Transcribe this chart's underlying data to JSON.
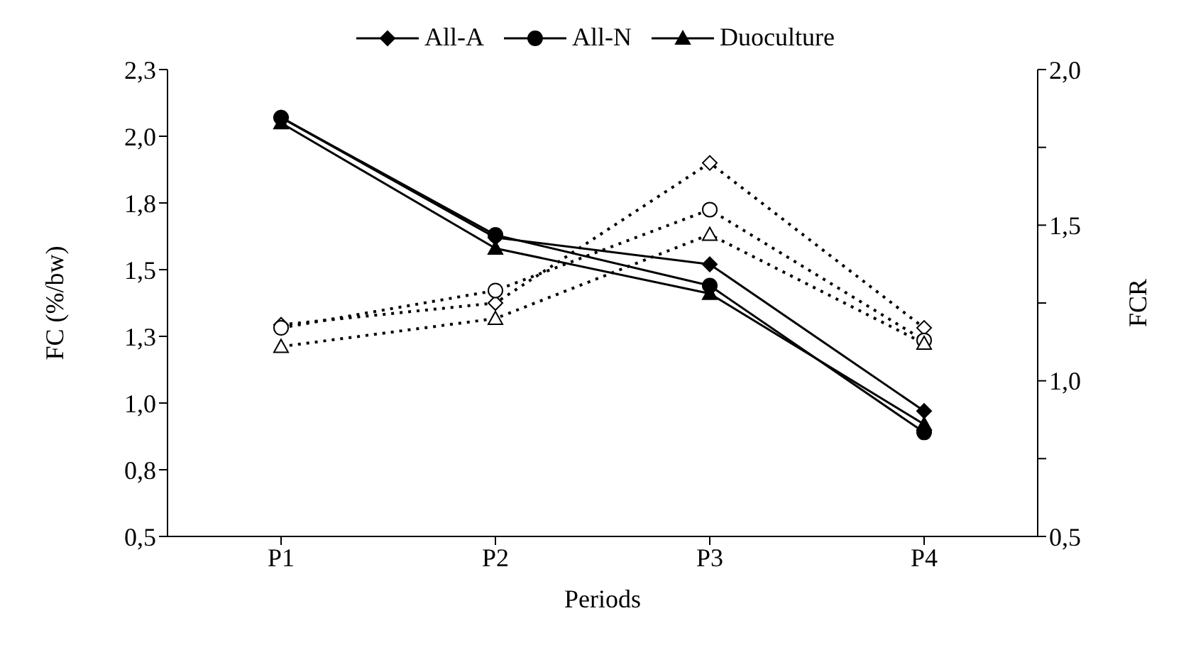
{
  "chart_data": {
    "type": "line",
    "xlabel": "Periods",
    "ylabel": "FC (%/bw)",
    "y2label": "FCR",
    "categories": [
      "P1",
      "P2",
      "P3",
      "P4"
    ],
    "series": [
      {
        "name": "All-A",
        "color": "#000000",
        "marker": "diamond",
        "line_style": "solid",
        "values": [
          2.07,
          1.62,
          1.52,
          0.97
        ]
      },
      {
        "name": "All-N",
        "color": "#000000",
        "marker": "circle",
        "line_style": "solid",
        "values": [
          2.07,
          1.63,
          1.44,
          0.89
        ]
      },
      {
        "name": "Duoculture",
        "color": "#000000",
        "marker": "triangle",
        "line_style": "solid",
        "values": [
          2.05,
          1.58,
          1.41,
          0.92
        ]
      },
      {
        "color": "#000000",
        "marker": "diamond",
        "line_style": "dotted",
        "axis": "y2",
        "values": [
          1.18,
          1.25,
          1.7,
          1.17
        ]
      },
      {
        "color": "#000000",
        "marker": "circle",
        "line_style": "dotted",
        "axis": "y2",
        "values": [
          1.17,
          1.29,
          1.55,
          1.13
        ]
      },
      {
        "color": "#000000",
        "marker": "triangle",
        "line_style": "dotted",
        "axis": "y2",
        "values": [
          1.11,
          1.2,
          1.47,
          1.12
        ]
      }
    ],
    "ylim": [
      0.5,
      2.25
    ],
    "yticks": [
      {
        "value": 0.5,
        "label": "0,5"
      },
      {
        "value": 0.75,
        "label": "0,8"
      },
      {
        "value": 1.0,
        "label": "1,0"
      },
      {
        "value": 1.25,
        "label": "1,3"
      },
      {
        "value": 1.5,
        "label": "1,5"
      },
      {
        "value": 1.75,
        "label": "1,8"
      },
      {
        "value": 2.0,
        "label": "2,0"
      },
      {
        "value": 2.25,
        "label": "2,3"
      }
    ],
    "y2lim": [
      0.5,
      2.0
    ],
    "y2ticks": [
      {
        "value": 0.5,
        "label": "0,5"
      },
      {
        "value": 0.75,
        "label": null
      },
      {
        "value": 1.0,
        "label": "1,0"
      },
      {
        "value": 1.25,
        "label": null
      },
      {
        "value": 1.5,
        "label": "1,5"
      },
      {
        "value": 1.75,
        "label": null
      },
      {
        "value": 2.0,
        "label": "2,0"
      }
    ],
    "grid": false,
    "legend": "top"
  }
}
